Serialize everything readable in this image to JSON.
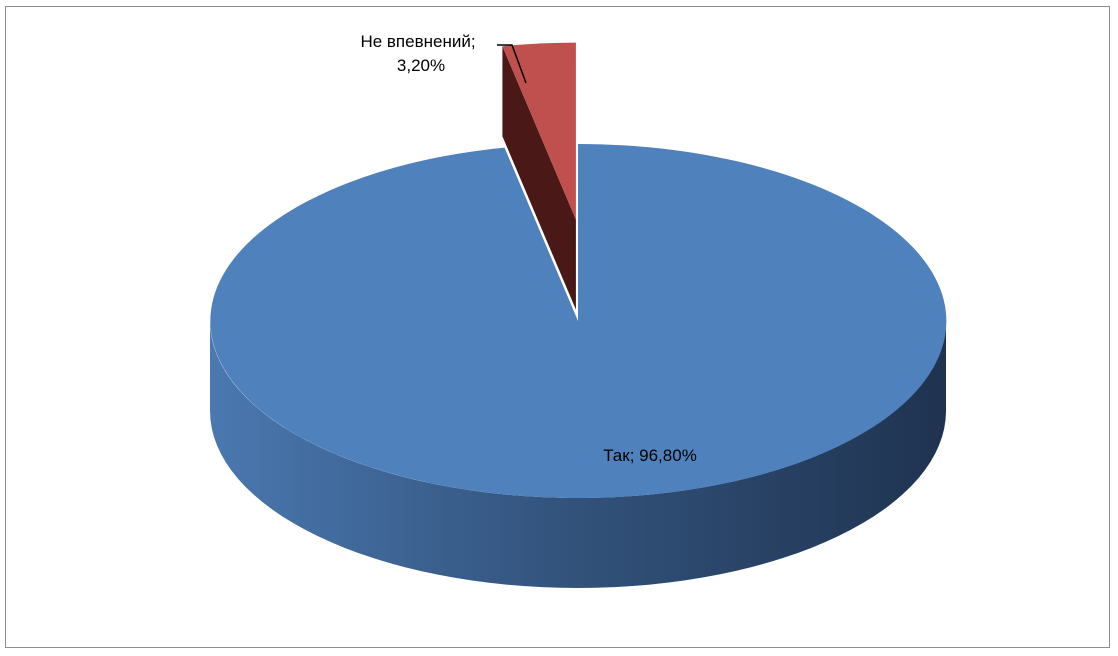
{
  "chart_data": {
    "type": "pie",
    "title": "",
    "categories": [
      "Так",
      "Не впевнений"
    ],
    "values": [
      96.8,
      3.2
    ],
    "colors": [
      "#4f81bd",
      "#c0504d"
    ],
    "exploded": [
      false,
      true
    ],
    "legend": "none",
    "labels": [
      {
        "name": "Так",
        "value_text": "96,80%",
        "text": "Так; 96,80%"
      },
      {
        "name": "Не впевнений",
        "value_text": "3,20%",
        "line1": "Не впевнений;",
        "line2": "3,20%"
      }
    ]
  }
}
